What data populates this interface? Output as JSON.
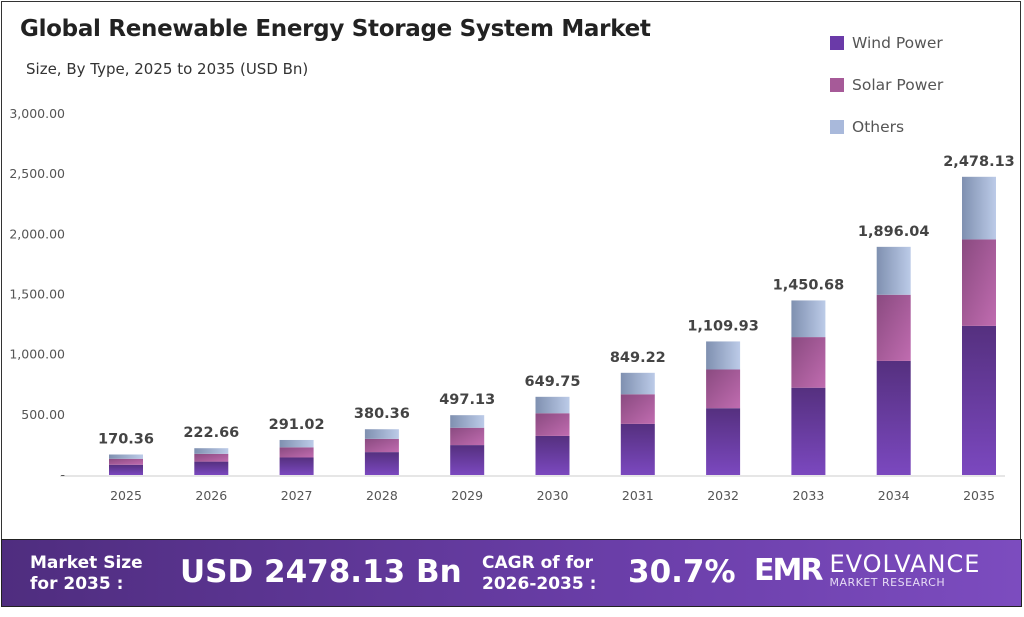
{
  "chart_data": {
    "type": "bar",
    "stacked": true,
    "title": "Global Renewable Energy Storage System Market",
    "subtitle": "Size, By Type, 2025 to 2035 (USD Bn)",
    "categories": [
      "2025",
      "2026",
      "2027",
      "2028",
      "2029",
      "2030",
      "2031",
      "2032",
      "2033",
      "2034",
      "2035"
    ],
    "totals": [
      170.36,
      222.66,
      291.02,
      380.36,
      497.13,
      649.75,
      849.22,
      1109.93,
      1450.68,
      1896.04,
      2478.13
    ],
    "total_labels": [
      "170.36",
      "222.66",
      "291.02",
      "380.36",
      "497.13",
      "649.75",
      "849.22",
      "1,109.93",
      "1,450.68",
      "1,896.04",
      "2,478.13"
    ],
    "series": [
      {
        "name": "Wind Power",
        "share": 0.5,
        "color": "#6a3aa8"
      },
      {
        "name": "Solar Power",
        "share": 0.29,
        "color": "#a65a98"
      },
      {
        "name": "Others",
        "share": 0.21,
        "color": "#a9b9db"
      }
    ],
    "ylim": [
      0,
      3000
    ],
    "yticks": [
      0,
      500,
      1000,
      1500,
      2000,
      2500,
      3000
    ],
    "ytick_labels": [
      "-",
      "500.00",
      "1,000.00",
      "1,500.00",
      "2,000.00",
      "2,500.00",
      "3,000.00"
    ],
    "grid": false,
    "legend": "top-right"
  },
  "footer": {
    "market_size_label_1": "Market Size",
    "market_size_label_2": "for 2035 :",
    "market_size_value": "USD 2478.13 Bn",
    "cagr_label_1": "CAGR of for",
    "cagr_label_2": "2026-2035 :",
    "cagr_value": "30.7%",
    "logo_mark": "EMR",
    "logo_name": "EVOLVANCE",
    "logo_sub": "MARKET RESEARCH"
  }
}
